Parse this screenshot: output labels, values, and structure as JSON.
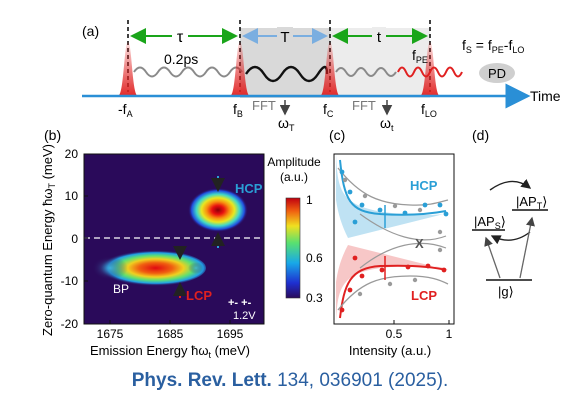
{
  "panel_a": {
    "label": "(a)",
    "tau": "τ",
    "tau_value": "0.2ps",
    "T": "T",
    "t": "t",
    "f_pe": "f",
    "f_pe_sub": "PE",
    "fs_eq_f1": "f",
    "fs_eq_s": "S",
    "fs_eq_mid": " = f",
    "fs_eq_pe": "PE",
    "fs_eq_minus": "-f",
    "fs_eq_lo": "LO",
    "pd": "PD",
    "pulse_labels": [
      {
        "main": "-f",
        "sub": "A"
      },
      {
        "main": "f",
        "sub": "B"
      },
      {
        "main": "f",
        "sub": "C"
      },
      {
        "main": "f",
        "sub": "LO"
      }
    ],
    "fft1": "FFT",
    "fft2": "FFT",
    "omega_T": "ω",
    "omega_T_sub": "T",
    "omega_t": "ω",
    "omega_t_sub": "t",
    "time_label": "Time"
  },
  "panel_b": {
    "label": "(b)",
    "ylabel_main": "Zero-quantum Energy ħω",
    "ylabel_sub": "T",
    "ylabel_unit": " (meV)",
    "xlabel_main": "Emission Energy ħω",
    "xlabel_sub": "t",
    "xlabel_unit": " (meV)",
    "y_ticks": [
      "20",
      "10",
      "0",
      "-10",
      "-20"
    ],
    "x_ticks": [
      "1675",
      "1685",
      "1695"
    ],
    "hcp": "HCP",
    "lcp": "LCP",
    "bp": "BP",
    "pol": "+- +-",
    "voltage": "1.2V",
    "colorbar_title": "Amplitude",
    "colorbar_unit": "(a.u.)",
    "colorbar_ticks": [
      "1",
      "0.6",
      "0.3"
    ]
  },
  "panel_c": {
    "label": "(c)",
    "hcp": "HCP",
    "lcp": "LCP",
    "x_marker": "X",
    "xlabel": "Intensity (a.u.)",
    "x_ticks": [
      "0.5",
      "1"
    ]
  },
  "panel_d": {
    "label": "(d)",
    "aps_main": "|AP",
    "aps_sub": "S",
    "aps_end": "⟩",
    "apt_main": "|AP",
    "apt_sub": "T",
    "apt_end": "⟩",
    "g": "|g⟩"
  },
  "citation": {
    "journal": "Phys. Rev. Lett.",
    "rest": " 134, 036901 (2025)."
  },
  "colors": {
    "hcp": "#2a9fd6",
    "lcp": "#e02020",
    "arrow_green": "#1aa51a",
    "time_axis": "#2a8fd6",
    "citation": "#2a5fa0"
  }
}
